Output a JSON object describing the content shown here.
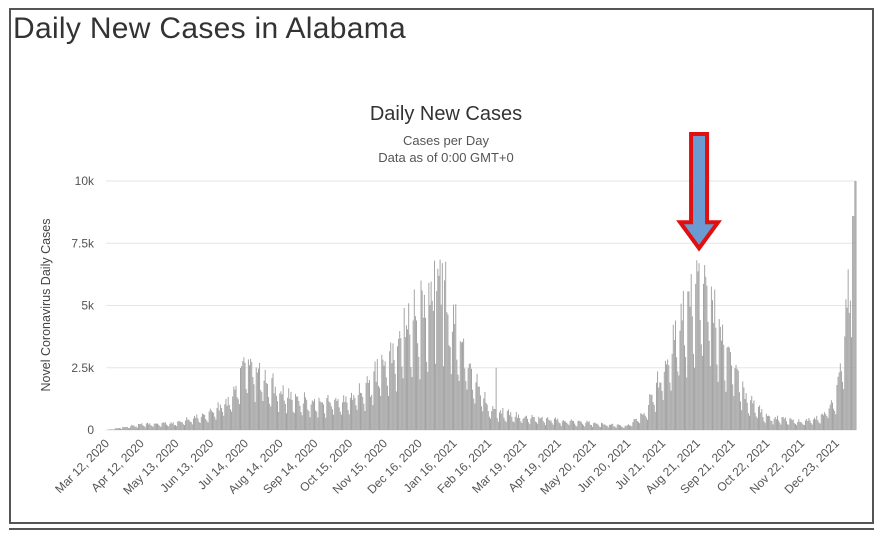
{
  "page": {
    "title": "Daily New Cases in Alabama"
  },
  "chart_data": {
    "type": "bar",
    "title": "Daily New Cases",
    "subtitle_1": "Cases per Day",
    "subtitle_2": "Data as of 0:00 GMT+0",
    "ylabel": "Novel Coronavirus Daily Cases",
    "xlabel": "",
    "ylim": [
      0,
      10000
    ],
    "yticks": [
      {
        "value": 0,
        "label": "0"
      },
      {
        "value": 2500,
        "label": "2.5k"
      },
      {
        "value": 5000,
        "label": "5k"
      },
      {
        "value": 7500,
        "label": "7.5k"
      },
      {
        "value": 10000,
        "label": "10k"
      }
    ],
    "x_range": [
      "2020-03-12",
      "2022-01-10"
    ],
    "xticks": [
      {
        "date": "2020-03-12",
        "label": "Mar 12, 2020"
      },
      {
        "date": "2020-04-12",
        "label": "Apr 12, 2020"
      },
      {
        "date": "2020-05-13",
        "label": "May 13, 2020"
      },
      {
        "date": "2020-06-13",
        "label": "Jun 13, 2020"
      },
      {
        "date": "2020-07-14",
        "label": "Jul 14, 2020"
      },
      {
        "date": "2020-08-14",
        "label": "Aug 14, 2020"
      },
      {
        "date": "2020-09-14",
        "label": "Sep 14, 2020"
      },
      {
        "date": "2020-10-15",
        "label": "Oct 15, 2020"
      },
      {
        "date": "2020-11-15",
        "label": "Nov 15, 2020"
      },
      {
        "date": "2020-12-16",
        "label": "Dec 16, 2020"
      },
      {
        "date": "2021-01-16",
        "label": "Jan 16, 2021"
      },
      {
        "date": "2021-02-16",
        "label": "Feb 16, 2021"
      },
      {
        "date": "2021-03-19",
        "label": "Mar 19, 2021"
      },
      {
        "date": "2021-04-19",
        "label": "Apr 19, 2021"
      },
      {
        "date": "2021-05-20",
        "label": "May 20, 2021"
      },
      {
        "date": "2021-06-20",
        "label": "Jun 20, 2021"
      },
      {
        "date": "2021-07-21",
        "label": "Jul 21, 2021"
      },
      {
        "date": "2021-08-21",
        "label": "Aug 21, 2021"
      },
      {
        "date": "2021-09-21",
        "label": "Sep 21, 2021"
      },
      {
        "date": "2021-10-22",
        "label": "Oct 22, 2021"
      },
      {
        "date": "2021-11-22",
        "label": "Nov 22, 2021"
      },
      {
        "date": "2021-12-23",
        "label": "Dec 23, 2021"
      }
    ],
    "trend_points": [
      [
        "2020-03-12",
        0
      ],
      [
        "2020-03-25",
        80
      ],
      [
        "2020-04-12",
        200
      ],
      [
        "2020-05-13",
        250
      ],
      [
        "2020-06-13",
        600
      ],
      [
        "2020-07-01",
        1100
      ],
      [
        "2020-07-10",
        2000
      ],
      [
        "2020-07-14",
        2600
      ],
      [
        "2020-07-20",
        2400
      ],
      [
        "2020-08-01",
        1800
      ],
      [
        "2020-08-14",
        1400
      ],
      [
        "2020-09-01",
        1100
      ],
      [
        "2020-09-14",
        1000
      ],
      [
        "2020-10-15",
        1100
      ],
      [
        "2020-11-01",
        1600
      ],
      [
        "2020-11-15",
        2500
      ],
      [
        "2020-12-01",
        3300
      ],
      [
        "2020-12-16",
        4300
      ],
      [
        "2020-12-28",
        4800
      ],
      [
        "2021-01-05",
        5200
      ],
      [
        "2021-01-16",
        3900
      ],
      [
        "2021-02-01",
        2200
      ],
      [
        "2021-02-16",
        800
      ],
      [
        "2021-03-19",
        450
      ],
      [
        "2021-04-19",
        350
      ],
      [
        "2021-05-20",
        250
      ],
      [
        "2021-06-20",
        150
      ],
      [
        "2021-07-05",
        600
      ],
      [
        "2021-07-21",
        2000
      ],
      [
        "2021-08-05",
        3700
      ],
      [
        "2021-08-15",
        4800
      ],
      [
        "2021-08-21",
        5200
      ],
      [
        "2021-08-28",
        5400
      ],
      [
        "2021-09-05",
        4400
      ],
      [
        "2021-09-21",
        2700
      ],
      [
        "2021-10-05",
        1100
      ],
      [
        "2021-10-22",
        500
      ],
      [
        "2021-11-22",
        300
      ],
      [
        "2021-12-10",
        500
      ],
      [
        "2021-12-23",
        1200
      ],
      [
        "2021-12-30",
        2800
      ],
      [
        "2022-01-05",
        6500
      ],
      [
        "2022-01-10",
        8600
      ]
    ],
    "spikes": [
      [
        "2020-07-14",
        2700
      ],
      [
        "2020-07-18",
        2600
      ],
      [
        "2020-12-03",
        4900
      ],
      [
        "2020-12-18",
        6000
      ],
      [
        "2020-12-30",
        6800
      ],
      [
        "2021-01-06",
        6700
      ],
      [
        "2021-02-23",
        2500
      ],
      [
        "2021-08-23",
        6700
      ],
      [
        "2021-08-30",
        5800
      ],
      [
        "2022-01-08",
        8600
      ]
    ],
    "annotation": {
      "type": "arrow",
      "points_to": "2021-08-23",
      "fill": "#6b9bd1",
      "stroke": "#e01010"
    },
    "colors": {
      "bar": "#a0a0a0",
      "grid": "#e6e6e6",
      "frame": "#555555"
    }
  }
}
